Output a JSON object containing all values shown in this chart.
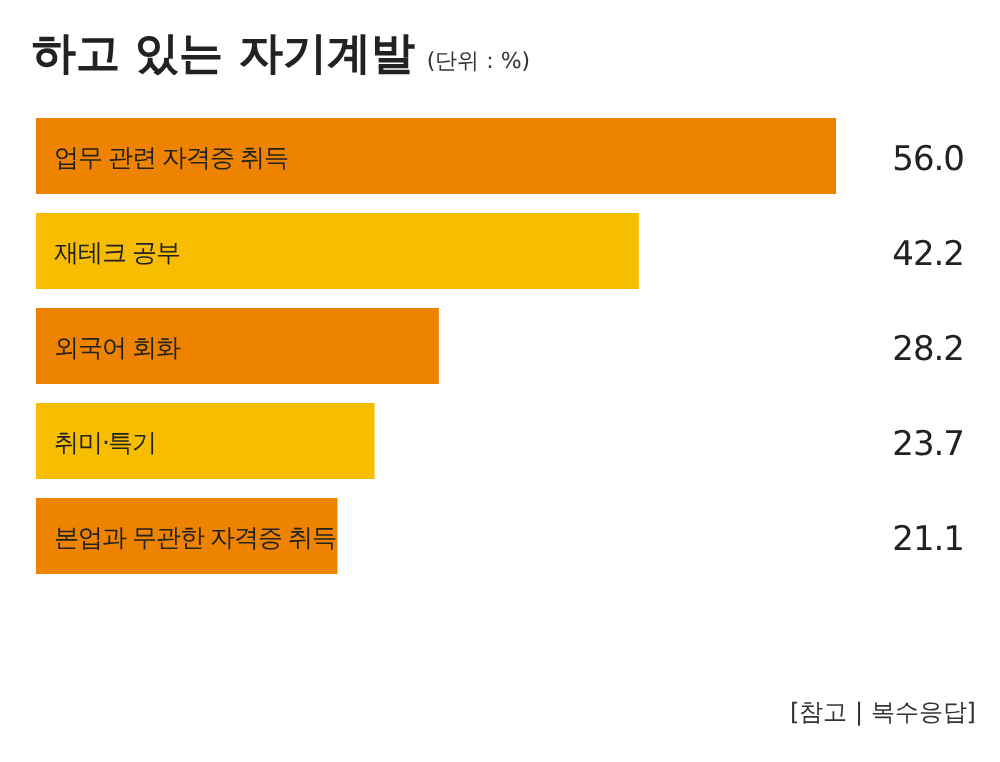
{
  "chart_data": {
    "type": "bar",
    "orientation": "horizontal",
    "title": "하고 있는 자기계발",
    "subtitle": "(단위 : %)",
    "categories": [
      "업무 관련 자격증 취득",
      "재테크 공부",
      "외국어 회화",
      "취미·특기",
      "본업과 무관한 자격증 취득"
    ],
    "values": [
      56.0,
      42.2,
      28.2,
      23.7,
      21.1
    ],
    "value_labels": [
      "56.0",
      "42.2",
      "28.2",
      "23.7",
      "21.1"
    ],
    "colors": [
      "#ee8300",
      "#f7bd00",
      "#ee8300",
      "#f7bd00",
      "#ee8300"
    ],
    "annotations": [
      "[참고 | 복수응답]"
    ]
  }
}
